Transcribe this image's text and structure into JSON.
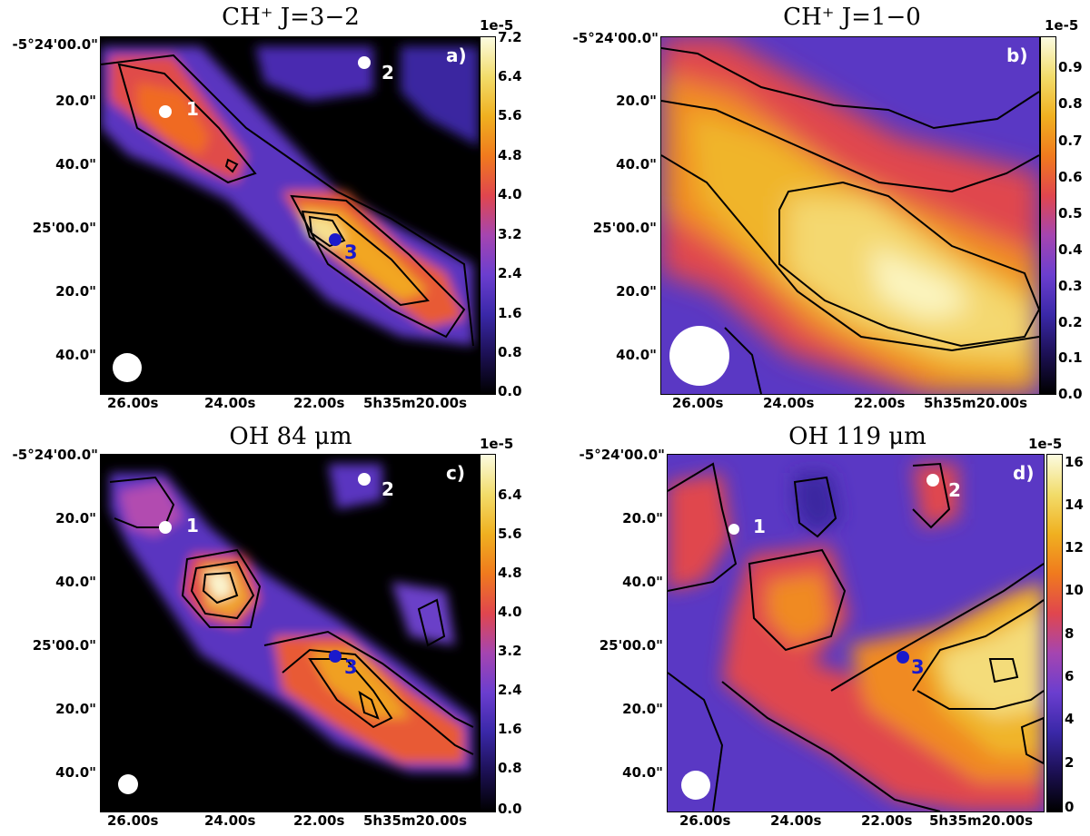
{
  "panels": [
    {
      "title": "CH⁺ J=3−2",
      "label": "a)",
      "y_ticks": [
        "-5°24'00.0\"",
        "20.0\"",
        "40.0\"",
        "25'00.0\"",
        "20.0\"",
        "40.0\""
      ],
      "x_ticks": [
        "26.00s",
        "24.00s",
        "22.00s",
        "5h35m20.00s"
      ],
      "colorbar": {
        "exponent": "1e-5",
        "ticks": [
          "7.2",
          "6.4",
          "5.6",
          "4.8",
          "4.0",
          "3.2",
          "2.4",
          "1.6",
          "0.8",
          "0.0"
        ],
        "min": 0.0,
        "max": 7.2
      },
      "sources": [
        {
          "id": "1",
          "color": "#ffffff"
        },
        {
          "id": "2",
          "color": "#ffffff"
        },
        {
          "id": "3",
          "color": "#1a1acc"
        }
      ]
    },
    {
      "title": "CH⁺ J=1−0",
      "label": "b)",
      "y_ticks": [
        "-5°24'00.0\"",
        "20.0\"",
        "40.0\"",
        "25'00.0\"",
        "20.0\"",
        "40.0\""
      ],
      "x_ticks": [
        "26.00s",
        "24.00s",
        "22.00s",
        "5h35m20.00s"
      ],
      "colorbar": {
        "exponent": "1e-5",
        "ticks": [
          "0.9",
          "0.8",
          "0.7",
          "0.6",
          "0.5",
          "0.4",
          "0.3",
          "0.2",
          "0.1",
          "0.0"
        ],
        "min": 0.0,
        "max": 0.97
      },
      "sources": []
    },
    {
      "title": "OH 84 μm",
      "label": "c)",
      "y_ticks": [
        "-5°24'00.0\"",
        "20.0\"",
        "40.0\"",
        "25'00.0\"",
        "20.0\"",
        "40.0\""
      ],
      "x_ticks": [
        "26.00s",
        "24.00s",
        "22.00s",
        "5h35m20.00s"
      ],
      "colorbar": {
        "exponent": "1e-5",
        "ticks": [
          "6.4",
          "5.6",
          "4.8",
          "4.0",
          "3.2",
          "2.4",
          "1.6",
          "0.8",
          "0.0"
        ],
        "min": 0.0,
        "max": 7.2
      },
      "sources": [
        {
          "id": "1",
          "color": "#ffffff"
        },
        {
          "id": "2",
          "color": "#ffffff"
        },
        {
          "id": "3",
          "color": "#1a1acc"
        }
      ]
    },
    {
      "title": "OH 119 μm",
      "label": "d)",
      "y_ticks": [
        "-5°24'00.0\"",
        "20.0\"",
        "40.0\"",
        "25'00.0\"",
        "20.0\"",
        "40.0\""
      ],
      "x_ticks": [
        "26.00s",
        "24.00s",
        "22.00s",
        "5h35m20.00s"
      ],
      "colorbar": {
        "exponent": "1e-5",
        "ticks": [
          "16",
          "14",
          "12",
          "10",
          "8",
          "6",
          "4",
          "2",
          "0"
        ],
        "min": 0,
        "max": 16.5
      },
      "sources": [
        {
          "id": "1",
          "color": "#ffffff"
        },
        {
          "id": "2",
          "color": "#ffffff"
        },
        {
          "id": "3",
          "color": "#1a1acc"
        }
      ]
    }
  ],
  "colormap": [
    "#000000",
    "#1c1054",
    "#3a28a8",
    "#6b3ecf",
    "#a545b0",
    "#e0464e",
    "#f07a1e",
    "#f0b020",
    "#f2dc6a",
    "#fbfbe0"
  ]
}
